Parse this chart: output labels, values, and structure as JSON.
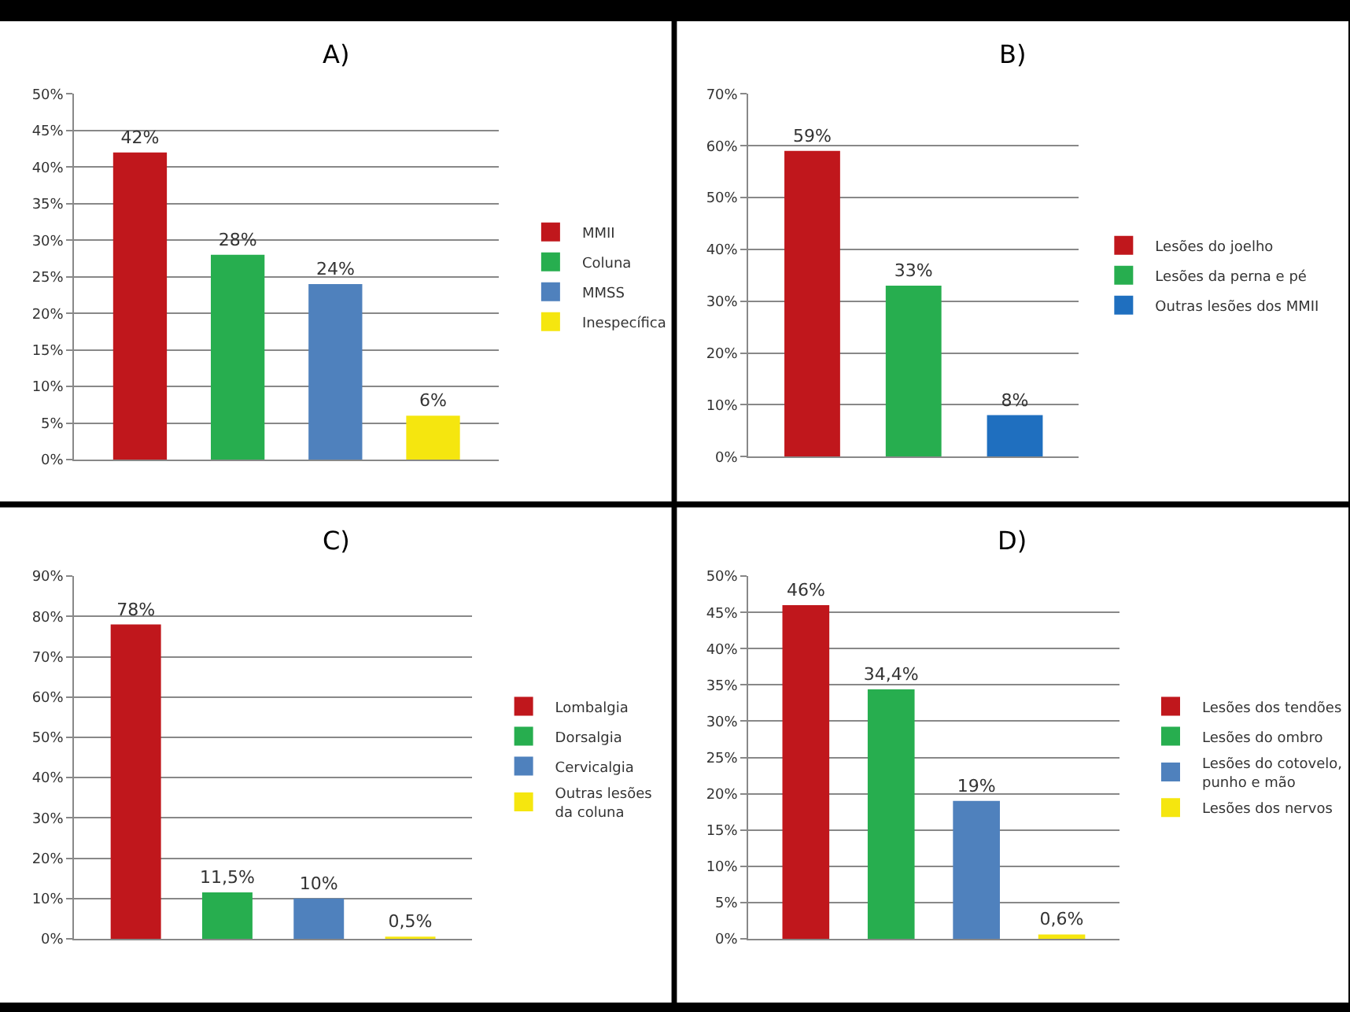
{
  "chart_data": [
    {
      "type": "bar",
      "title": "A)",
      "categories": [
        null
      ],
      "ylim": [
        0,
        50
      ],
      "yticks": [
        {
          "value": 0,
          "label": "0%"
        },
        {
          "value": 5,
          "label": "5%"
        },
        {
          "value": 10,
          "label": "10%"
        },
        {
          "value": 15,
          "label": "15%"
        },
        {
          "value": 20,
          "label": "20%"
        },
        {
          "value": 25,
          "label": "25%"
        },
        {
          "value": 30,
          "label": "30%"
        },
        {
          "value": 35,
          "label": "35%"
        },
        {
          "value": 40,
          "label": "40%"
        },
        {
          "value": 45,
          "label": "45%"
        },
        {
          "value": 50,
          "label": "50%"
        }
      ],
      "grid": "y",
      "legend": "right",
      "series": [
        {
          "name": "MMII",
          "color": "#c0171c",
          "values": [
            42
          ],
          "value_labels": [
            "42%"
          ]
        },
        {
          "name": "Coluna",
          "color": "#27ae4f",
          "values": [
            28
          ],
          "value_labels": [
            "28%"
          ]
        },
        {
          "name": "MMSS",
          "color": "#4f81bd",
          "values": [
            24
          ],
          "value_labels": [
            "24%"
          ]
        },
        {
          "name": "Inespecífica",
          "color": "#f5e60f",
          "values": [
            6
          ],
          "value_labels": [
            "6%"
          ]
        }
      ]
    },
    {
      "type": "bar",
      "title": "B)",
      "categories": [
        null
      ],
      "ylim": [
        0,
        70
      ],
      "yticks": [
        {
          "value": 0,
          "label": "0%"
        },
        {
          "value": 10,
          "label": "10%"
        },
        {
          "value": 20,
          "label": "20%"
        },
        {
          "value": 30,
          "label": "30%"
        },
        {
          "value": 40,
          "label": "40%"
        },
        {
          "value": 50,
          "label": "50%"
        },
        {
          "value": 60,
          "label": "60%"
        },
        {
          "value": 70,
          "label": "70%"
        }
      ],
      "grid": "y",
      "legend": "right",
      "series": [
        {
          "name": "Lesões do joelho",
          "color": "#c0171c",
          "values": [
            59
          ],
          "value_labels": [
            "59%"
          ]
        },
        {
          "name": "Lesões da perna e pé",
          "color": "#27ae4f",
          "values": [
            33
          ],
          "value_labels": [
            "33%"
          ]
        },
        {
          "name": "Outras lesões dos MMII",
          "color": "#1f6fbf",
          "values": [
            8
          ],
          "value_labels": [
            "8%"
          ]
        }
      ]
    },
    {
      "type": "bar",
      "title": "C)",
      "categories": [
        null
      ],
      "ylim": [
        0,
        90
      ],
      "yticks": [
        {
          "value": 0,
          "label": "0%"
        },
        {
          "value": 10,
          "label": "10%"
        },
        {
          "value": 20,
          "label": "20%"
        },
        {
          "value": 30,
          "label": "30%"
        },
        {
          "value": 40,
          "label": "40%"
        },
        {
          "value": 50,
          "label": "50%"
        },
        {
          "value": 60,
          "label": "60%"
        },
        {
          "value": 70,
          "label": "70%"
        },
        {
          "value": 80,
          "label": "80%"
        },
        {
          "value": 90,
          "label": "90%"
        }
      ],
      "grid": "y",
      "legend": "right",
      "series": [
        {
          "name": "Lombalgia",
          "color": "#c0171c",
          "values": [
            78
          ],
          "value_labels": [
            "78%"
          ]
        },
        {
          "name": "Dorsalgia",
          "color": "#27ae4f",
          "values": [
            11.5
          ],
          "value_labels": [
            "11,5%"
          ]
        },
        {
          "name": "Cervicalgia",
          "color": "#4f81bd",
          "values": [
            10
          ],
          "value_labels": [
            "10%"
          ]
        },
        {
          "name": "Outras lesões\nda coluna",
          "color": "#f5e60f",
          "values": [
            0.5
          ],
          "value_labels": [
            "0,5%"
          ]
        }
      ]
    },
    {
      "type": "bar",
      "title": "D)",
      "categories": [
        null
      ],
      "ylim": [
        0,
        50
      ],
      "yticks": [
        {
          "value": 0,
          "label": "0%"
        },
        {
          "value": 5,
          "label": "5%"
        },
        {
          "value": 10,
          "label": "10%"
        },
        {
          "value": 15,
          "label": "15%"
        },
        {
          "value": 20,
          "label": "20%"
        },
        {
          "value": 25,
          "label": "25%"
        },
        {
          "value": 30,
          "label": "30%"
        },
        {
          "value": 35,
          "label": "35%"
        },
        {
          "value": 40,
          "label": "40%"
        },
        {
          "value": 45,
          "label": "45%"
        },
        {
          "value": 50,
          "label": "50%"
        }
      ],
      "grid": "y",
      "legend": "right",
      "series": [
        {
          "name": "Lesões dos tendões",
          "color": "#c0171c",
          "values": [
            46
          ],
          "value_labels": [
            "46%"
          ]
        },
        {
          "name": "Lesões do ombro",
          "color": "#27ae4f",
          "values": [
            34.4
          ],
          "value_labels": [
            "34,4%"
          ]
        },
        {
          "name": "Lesões do cotovelo,\npunho e mão",
          "color": "#4f81bd",
          "values": [
            19
          ],
          "value_labels": [
            "19%"
          ]
        },
        {
          "name": "Lesões dos nervos",
          "color": "#f5e60f",
          "values": [
            0.6
          ],
          "value_labels": [
            "0,6%"
          ]
        }
      ]
    }
  ]
}
